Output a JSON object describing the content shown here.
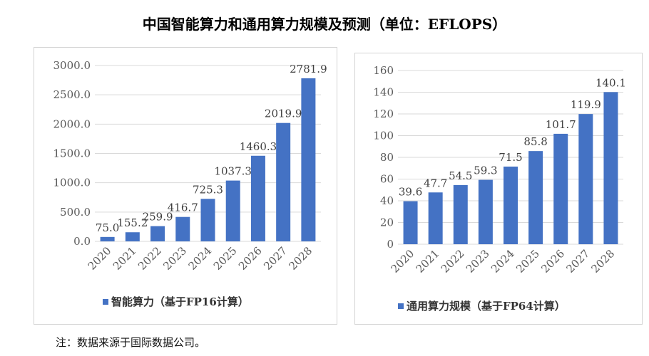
{
  "title": "中国智能算力和通用算力规模及预测（单位：EFLOPS）",
  "note": "注：数据来源于国际数据公司。",
  "colors": {
    "bar": "#4472c4",
    "grid": "#d9d9d9",
    "text": "#595959"
  },
  "chart_data": [
    {
      "type": "bar",
      "categories": [
        "2020",
        "2021",
        "2022",
        "2023",
        "2024",
        "2025",
        "2026",
        "2027",
        "2028"
      ],
      "values": [
        75.0,
        155.2,
        259.9,
        416.7,
        725.3,
        1037.3,
        1460.3,
        2019.9,
        2781.9
      ],
      "labels": [
        "75.0",
        "155.2",
        "259.9",
        "416.7",
        "725.3",
        "1037.3",
        "1460.3",
        "2019.9",
        "2781.9"
      ],
      "legend": "智能算力（基于FP16计算）",
      "legend_position": "bottom",
      "yticks": [
        "0.0",
        "500.0",
        "1000.0",
        "1500.0",
        "2000.0",
        "2500.0",
        "3000.0"
      ],
      "ylim": [
        0,
        3000
      ],
      "grid": true
    },
    {
      "type": "bar",
      "categories": [
        "2020",
        "2021",
        "2022",
        "2023",
        "2024",
        "2025",
        "2026",
        "2027",
        "2028"
      ],
      "values": [
        39.6,
        47.7,
        54.5,
        59.3,
        71.5,
        85.8,
        101.7,
        119.9,
        140.1
      ],
      "labels": [
        "39.6",
        "47.7",
        "54.5",
        "59.3",
        "71.5",
        "85.8",
        "101.7",
        "119.9",
        "140.1"
      ],
      "legend": "通用算力规模（基于FP64计算）",
      "legend_position": "bottom",
      "yticks": [
        "0",
        "20",
        "40",
        "60",
        "80",
        "100",
        "120",
        "140",
        "160"
      ],
      "ylim": [
        0,
        160
      ],
      "grid": true
    }
  ]
}
